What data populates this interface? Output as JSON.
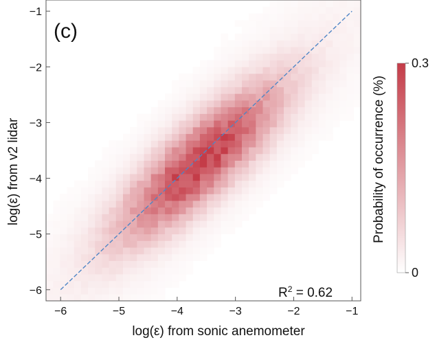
{
  "chart_data": {
    "type": "heatmap",
    "panel_label": "(c)",
    "xlabel": "log(ε) from sonic anemometer",
    "ylabel": "log(ε) from v2 lidar",
    "xlim": [
      -6.25,
      -0.85
    ],
    "ylim": [
      -6.2,
      -0.8
    ],
    "x_ticks": [
      -6,
      -5,
      -4,
      -3,
      -2,
      -1
    ],
    "y_ticks": [
      -6,
      -5,
      -4,
      -3,
      -2,
      -1
    ],
    "x_tick_labels": [
      "−6",
      "−5",
      "−4",
      "−3",
      "−2",
      "−1"
    ],
    "y_tick_labels": [
      "−6",
      "−5",
      "−4",
      "−3",
      "−2",
      "−1"
    ],
    "one_to_one_line": {
      "x": [
        -6,
        -1
      ],
      "y": [
        -6,
        -1
      ],
      "color": "#4f86c6",
      "style": "dashed"
    },
    "density_model": {
      "ridge_center": [
        -3.6,
        -3.7
      ],
      "peak_probability_percent": 0.3
    },
    "annotation": {
      "base": "R",
      "sup": "2",
      "rest": " = 0.62"
    },
    "colorbar": {
      "label": "Probability of occurrence (%)",
      "min": 0,
      "max": 0.3,
      "min_label": "0",
      "max_label": "0.3",
      "color_low": "#ffffff",
      "color_high": "#c43c48"
    }
  }
}
